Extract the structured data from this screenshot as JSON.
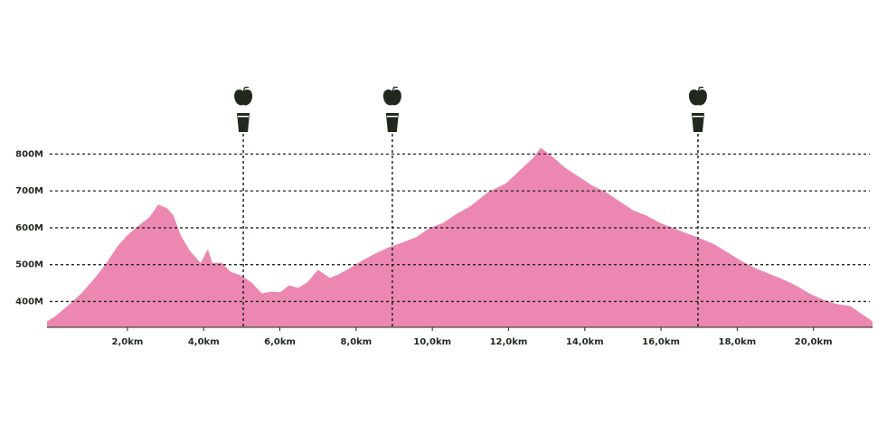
{
  "chart_data": {
    "type": "area",
    "color": "#ec87b1",
    "grid": true,
    "x": [
      -0.11,
      0.08,
      0.43,
      0.79,
      1.15,
      1.45,
      1.74,
      2.02,
      2.33,
      2.57,
      2.81,
      3.04,
      3.21,
      3.4,
      3.64,
      3.92,
      4.11,
      4.23,
      4.47,
      4.7,
      5.01,
      5.25,
      5.53,
      5.77,
      6.01,
      6.24,
      6.48,
      6.72,
      7.0,
      7.31,
      7.55,
      7.79,
      8.14,
      8.5,
      8.86,
      9.21,
      9.57,
      9.92,
      10.28,
      10.64,
      10.99,
      11.47,
      11.94,
      12.3,
      12.65,
      12.84,
      13.13,
      13.48,
      13.84,
      14.2,
      14.55,
      14.91,
      15.26,
      15.62,
      15.98,
      16.33,
      16.69,
      16.97,
      17.4,
      17.75,
      18.11,
      18.46,
      18.82,
      19.18,
      19.53,
      19.89,
      20.25,
      20.6,
      20.96,
      21.31,
      21.55
    ],
    "values": [
      346,
      358,
      388,
      422,
      464,
      505,
      550,
      582,
      609,
      628,
      663,
      653,
      633,
      579,
      537,
      505,
      542,
      505,
      505,
      481,
      469,
      452,
      422,
      427,
      425,
      444,
      437,
      452,
      486,
      464,
      474,
      488,
      510,
      530,
      547,
      560,
      574,
      599,
      613,
      638,
      658,
      697,
      721,
      756,
      790,
      817,
      795,
      763,
      739,
      714,
      697,
      672,
      648,
      633,
      613,
      599,
      584,
      574,
      555,
      533,
      510,
      491,
      476,
      461,
      444,
      422,
      405,
      393,
      388,
      363,
      346
    ],
    "xlim": [
      -0.11,
      21.55
    ],
    "ylim": [
      330,
      850
    ],
    "xticks": [
      {
        "value": 2,
        "label": "2,0km"
      },
      {
        "value": 4,
        "label": "4,0km"
      },
      {
        "value": 6,
        "label": "6,0km"
      },
      {
        "value": 8,
        "label": "8,0km"
      },
      {
        "value": 10,
        "label": "10,0km"
      },
      {
        "value": 12,
        "label": "12,0km"
      },
      {
        "value": 14,
        "label": "14,0km"
      },
      {
        "value": 16,
        "label": "16,0km"
      },
      {
        "value": 18,
        "label": "18,0km"
      },
      {
        "value": 20,
        "label": "20,0km"
      }
    ],
    "yticks": [
      {
        "value": 400,
        "label": "400M"
      },
      {
        "value": 500,
        "label": "500M"
      },
      {
        "value": 600,
        "label": "600M"
      },
      {
        "value": 700,
        "label": "700M"
      },
      {
        "value": 800,
        "label": "800M"
      }
    ],
    "markers": [
      5.04,
      8.95,
      16.97
    ],
    "marker_color": "#1f2a1c"
  }
}
